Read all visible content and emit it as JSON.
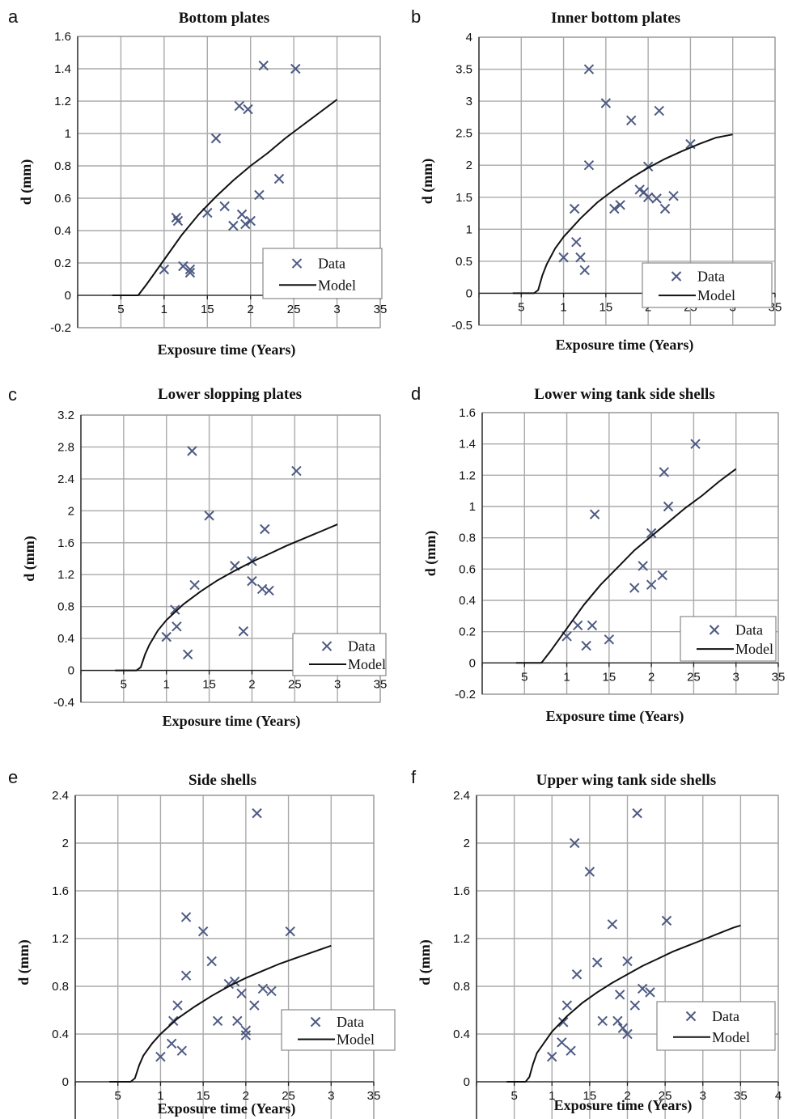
{
  "chart_data": [
    {
      "panel": "a",
      "type": "scatter",
      "title": "Bottom plates",
      "xlabel": "Exposure time (Years)",
      "ylabel": "d (mm)",
      "xlim": [
        0,
        35
      ],
      "ylim": [
        -0.2,
        1.6
      ],
      "xstep": 5,
      "ystep": 0.2,
      "grid": true,
      "legend_position": "bottom-right",
      "series": [
        {
          "name": "Data",
          "kind": "markers",
          "x": [
            10,
            11.4,
            11.6,
            12.2,
            13,
            13,
            15,
            16,
            17,
            18,
            18.7,
            19,
            19.4,
            19.7,
            20,
            21,
            21.5,
            23.3,
            25.2
          ],
          "y": [
            0.16,
            0.48,
            0.46,
            0.18,
            0.16,
            0.14,
            0.51,
            0.97,
            0.55,
            0.43,
            1.17,
            0.5,
            0.44,
            1.15,
            0.46,
            0.62,
            1.42,
            0.72,
            1.4
          ]
        },
        {
          "name": "Model",
          "kind": "line",
          "x": [
            4,
            6.5,
            7,
            8,
            10,
            12,
            14,
            16,
            18,
            20,
            22,
            24,
            26,
            28,
            30
          ],
          "y": [
            0,
            0,
            0,
            0.07,
            0.22,
            0.37,
            0.5,
            0.61,
            0.71,
            0.8,
            0.88,
            0.97,
            1.05,
            1.13,
            1.21
          ]
        }
      ]
    },
    {
      "panel": "b",
      "type": "scatter",
      "title": "Inner bottom plates",
      "xlabel": "Exposure time (Years)",
      "ylabel": "d (mm)",
      "xlim": [
        0,
        35
      ],
      "ylim": [
        -0.5,
        4
      ],
      "xstep": 5,
      "ystep": 0.5,
      "grid": true,
      "legend_position": "bottom-right",
      "series": [
        {
          "name": "Data",
          "kind": "markers",
          "x": [
            10,
            11.3,
            11.5,
            12,
            12.5,
            13,
            13,
            15,
            16,
            16.7,
            18,
            19,
            19.5,
            20,
            20,
            21,
            21.3,
            22,
            23,
            25
          ],
          "y": [
            0.56,
            1.32,
            0.8,
            0.56,
            0.36,
            3.5,
            2,
            2.97,
            1.32,
            1.38,
            2.7,
            1.62,
            1.58,
            1.5,
            1.98,
            1.48,
            2.85,
            1.32,
            1.52,
            2.33
          ]
        },
        {
          "name": "Model",
          "kind": "line",
          "x": [
            4,
            6.5,
            7,
            7.5,
            8,
            9,
            10,
            12,
            14,
            16,
            18,
            20,
            22,
            24,
            26,
            28,
            30
          ],
          "y": [
            0,
            0,
            0.05,
            0.28,
            0.45,
            0.7,
            0.88,
            1.17,
            1.42,
            1.62,
            1.8,
            1.96,
            2.1,
            2.22,
            2.33,
            2.43,
            2.48
          ]
        }
      ]
    },
    {
      "panel": "c",
      "type": "scatter",
      "title": "Lower slopping plates",
      "xlabel": "Exposure time (Years)",
      "ylabel": "d (mm)",
      "xlim": [
        0,
        35
      ],
      "ylim": [
        -0.4,
        3.2
      ],
      "xstep": 5,
      "ystep": 0.4,
      "grid": true,
      "legend_position": "bottom-right",
      "series": [
        {
          "name": "Data",
          "kind": "markers",
          "x": [
            10,
            11,
            11.2,
            12.5,
            13,
            13.3,
            15,
            18,
            19,
            20,
            20,
            21.2,
            21.5,
            22,
            25.2
          ],
          "y": [
            0.42,
            0.76,
            0.55,
            0.2,
            2.75,
            1.07,
            1.94,
            1.31,
            0.49,
            1.12,
            1.37,
            1.02,
            1.77,
            1,
            2.5
          ]
        },
        {
          "name": "Model",
          "kind": "line",
          "x": [
            4,
            6.5,
            7,
            7.5,
            8,
            9,
            10,
            12,
            14,
            16,
            18,
            20,
            22,
            24,
            26,
            28,
            30
          ],
          "y": [
            0,
            0,
            0.04,
            0.2,
            0.32,
            0.5,
            0.63,
            0.83,
            0.99,
            1.13,
            1.25,
            1.36,
            1.46,
            1.56,
            1.65,
            1.74,
            1.83
          ]
        }
      ]
    },
    {
      "panel": "d",
      "type": "scatter",
      "title": "Lower wing tank side shells",
      "xlabel": "Exposure time (Years)",
      "ylabel": "d (mm)",
      "xlim": [
        0,
        35
      ],
      "ylim": [
        -0.2,
        1.6
      ],
      "xstep": 5,
      "ystep": 0.2,
      "grid": true,
      "legend_position": "bottom-right",
      "series": [
        {
          "name": "Data",
          "kind": "markers",
          "x": [
            10,
            11.3,
            12.3,
            13,
            13.3,
            15,
            18,
            19,
            20,
            20,
            21.3,
            21.5,
            22,
            25.2
          ],
          "y": [
            0.17,
            0.24,
            0.11,
            0.24,
            0.95,
            0.15,
            0.48,
            0.62,
            0.5,
            0.83,
            0.56,
            1.22,
            1,
            1.4
          ]
        },
        {
          "name": "Model",
          "kind": "line",
          "x": [
            4,
            6.5,
            7,
            8,
            10,
            12,
            14,
            16,
            18,
            20,
            22,
            24,
            26,
            28,
            30
          ],
          "y": [
            0,
            0,
            0,
            0.07,
            0.22,
            0.37,
            0.5,
            0.61,
            0.72,
            0.81,
            0.9,
            0.99,
            1.07,
            1.16,
            1.24
          ]
        }
      ]
    },
    {
      "panel": "e",
      "type": "scatter",
      "title": "Side shells",
      "xlabel": "Exposure time (Years)",
      "ylabel": "d (mm)",
      "xlim": [
        0,
        35
      ],
      "ylim": [
        -0.4,
        2.4
      ],
      "xstep": 5,
      "ystep": 0.4,
      "grid": true,
      "legend_position": "bottom-right",
      "series": [
        {
          "name": "Data",
          "kind": "markers",
          "x": [
            10,
            11.3,
            11.5,
            12,
            12.5,
            13,
            13,
            15,
            16,
            16.7,
            18,
            18.7,
            19,
            19.5,
            20,
            20,
            21,
            21.3,
            22,
            23,
            25.2
          ],
          "y": [
            0.21,
            0.32,
            0.51,
            0.64,
            0.26,
            1.38,
            0.89,
            1.26,
            1.01,
            0.51,
            0.82,
            0.84,
            0.51,
            0.74,
            0.43,
            0.39,
            0.64,
            2.25,
            0.78,
            0.76,
            1.26
          ]
        },
        {
          "name": "Model",
          "kind": "line",
          "x": [
            4,
            6.5,
            7,
            7.5,
            8,
            9,
            10,
            12,
            14,
            16,
            18,
            20,
            22,
            24,
            26,
            28,
            30
          ],
          "y": [
            0,
            0,
            0.03,
            0.14,
            0.22,
            0.32,
            0.4,
            0.53,
            0.63,
            0.72,
            0.8,
            0.87,
            0.93,
            0.99,
            1.04,
            1.09,
            1.14
          ]
        }
      ]
    },
    {
      "panel": "f",
      "type": "scatter",
      "title": "Upper wing tank side shells",
      "xlabel": "Exposure time (Years)",
      "ylabel": "d (mm)",
      "xlim": [
        0,
        40
      ],
      "ylim": [
        -0.4,
        2.4
      ],
      "xstep": 5,
      "ystep": 0.4,
      "grid": true,
      "legend_position": "bottom-right",
      "series": [
        {
          "name": "Data",
          "kind": "markers",
          "x": [
            10,
            11.3,
            11.5,
            12,
            12.5,
            13,
            13.3,
            15,
            16,
            16.7,
            18,
            18.7,
            19,
            19.4,
            20,
            20,
            21,
            21.3,
            22,
            23,
            25.2
          ],
          "y": [
            0.21,
            0.33,
            0.5,
            0.64,
            0.26,
            2,
            0.9,
            1.76,
            1,
            0.51,
            1.32,
            0.51,
            0.73,
            0.45,
            0.4,
            1.01,
            0.64,
            2.25,
            0.78,
            0.75,
            1.35
          ]
        },
        {
          "name": "Model",
          "kind": "line",
          "x": [
            4,
            6.5,
            7,
            7.5,
            8,
            9,
            10,
            12,
            14,
            16,
            18,
            20,
            22,
            24,
            26,
            28,
            30,
            32,
            34,
            35
          ],
          "y": [
            0,
            0,
            0.04,
            0.15,
            0.24,
            0.33,
            0.42,
            0.55,
            0.66,
            0.75,
            0.83,
            0.9,
            0.97,
            1.03,
            1.09,
            1.14,
            1.19,
            1.24,
            1.29,
            1.31
          ]
        }
      ]
    }
  ]
}
